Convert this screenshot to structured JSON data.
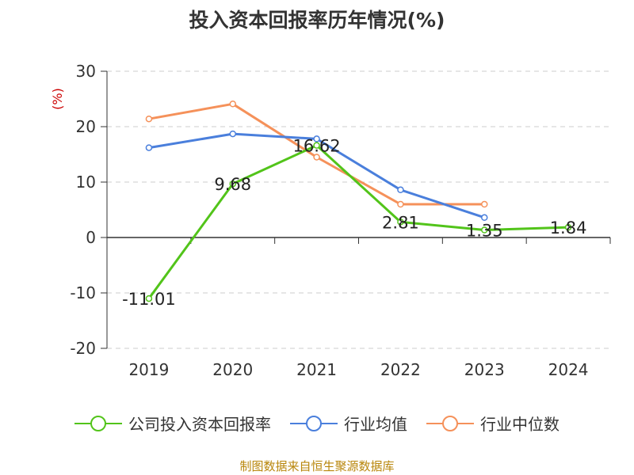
{
  "chart_data": {
    "type": "line",
    "title": "投入资本回报率历年情况(%)",
    "ylabel": "(%)",
    "categories": [
      "2019",
      "2020",
      "2021",
      "2022",
      "2023",
      "2024"
    ],
    "ylim": [
      -20,
      30
    ],
    "yticks": [
      30,
      20,
      10,
      0,
      -10,
      -20
    ],
    "grid": true,
    "legend_position": "bottom",
    "series": [
      {
        "name": "公司投入资本回报率",
        "color": "#52c41a",
        "values": [
          -11.01,
          9.68,
          16.62,
          2.81,
          1.35,
          1.84
        ],
        "labels": [
          "-11.01",
          "9.68",
          "16.62",
          "2.81",
          "1.35",
          "1.84"
        ]
      },
      {
        "name": "行业均值",
        "color": "#4a7fdc",
        "values": [
          16.2,
          18.7,
          17.8,
          8.6,
          3.6,
          null
        ]
      },
      {
        "name": "行业中位数",
        "color": "#f5915a",
        "values": [
          21.4,
          24.1,
          14.5,
          6.0,
          6.0,
          null
        ]
      }
    ]
  },
  "source": "制图数据来自恒生聚源数据库"
}
